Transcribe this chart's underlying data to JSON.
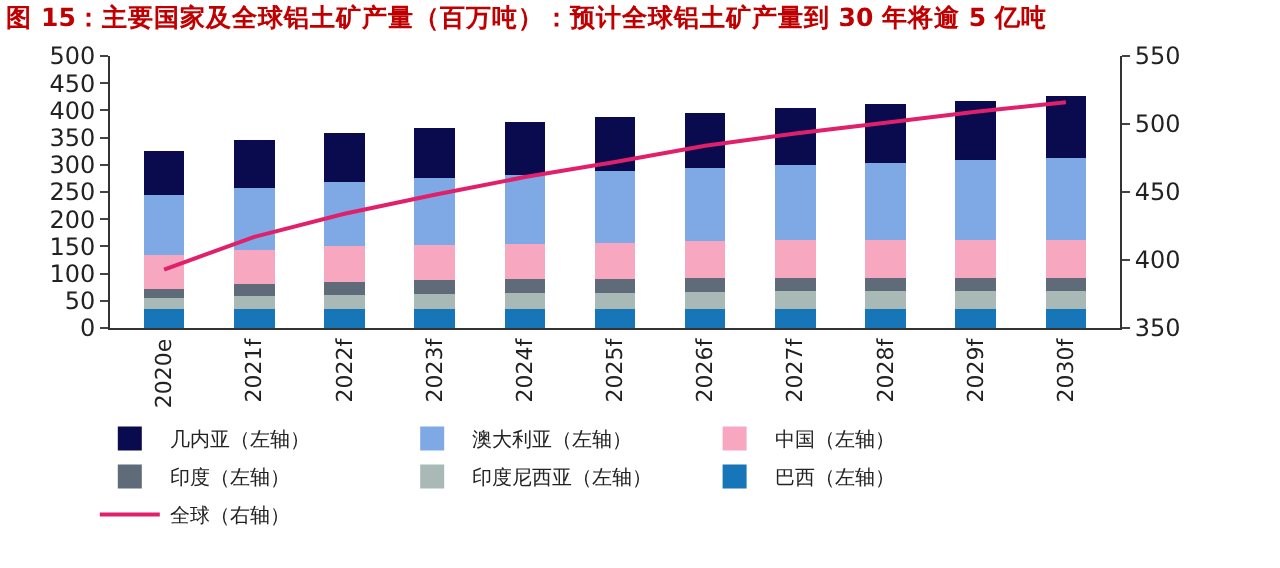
{
  "chart_data": {
    "type": "bar",
    "stacked": true,
    "title": "图 15：主要国家及全球铝土矿产量（百万吨）：预计全球铝土矿产量到 30 年将逾 5 亿吨",
    "categories": [
      "2020e",
      "2021f",
      "2022f",
      "2023f",
      "2024f",
      "2025f",
      "2026f",
      "2027f",
      "2028f",
      "2029f",
      "2030f"
    ],
    "series": [
      {
        "name": "巴西（左轴）",
        "color": "#1776b8",
        "values": [
          35,
          35,
          35,
          35,
          35,
          35,
          35,
          35,
          35,
          35,
          35
        ]
      },
      {
        "name": "印度尼西亚（左轴）",
        "color": "#a9b9b5",
        "values": [
          20,
          23,
          25,
          27,
          30,
          30,
          32,
          33,
          33,
          33,
          33
        ]
      },
      {
        "name": "印度（左轴）",
        "color": "#5f6b78",
        "values": [
          17,
          22,
          25,
          26,
          25,
          25,
          25,
          24,
          24,
          24,
          24
        ]
      },
      {
        "name": "中国（左轴）",
        "color": "#f7a8c0",
        "values": [
          63,
          63,
          65,
          65,
          65,
          67,
          68,
          70,
          70,
          70,
          70
        ]
      },
      {
        "name": "澳大利亚（左轴）",
        "color": "#7fa9e4",
        "values": [
          110,
          115,
          118,
          123,
          127,
          131,
          135,
          138,
          141,
          146,
          150
        ]
      },
      {
        "name": "几内亚（左轴）",
        "color": "#0a0a4e",
        "values": [
          80,
          87,
          90,
          92,
          96,
          100,
          101,
          104,
          108,
          110,
          114
        ]
      },
      {
        "name": "全球（右轴）",
        "color": "#e0206a",
        "type": "line",
        "axis": "y2",
        "values": [
          393,
          417,
          434,
          448,
          461,
          472,
          484,
          493,
          501,
          509,
          516
        ]
      }
    ],
    "ylim": [
      0,
      500
    ],
    "yticks": [
      0,
      50,
      100,
      150,
      200,
      250,
      300,
      350,
      400,
      450,
      500
    ],
    "y2lim": [
      350,
      550
    ],
    "y2ticks": [
      350,
      400,
      450,
      500,
      550
    ],
    "legend": "bottom",
    "marker": "none"
  }
}
